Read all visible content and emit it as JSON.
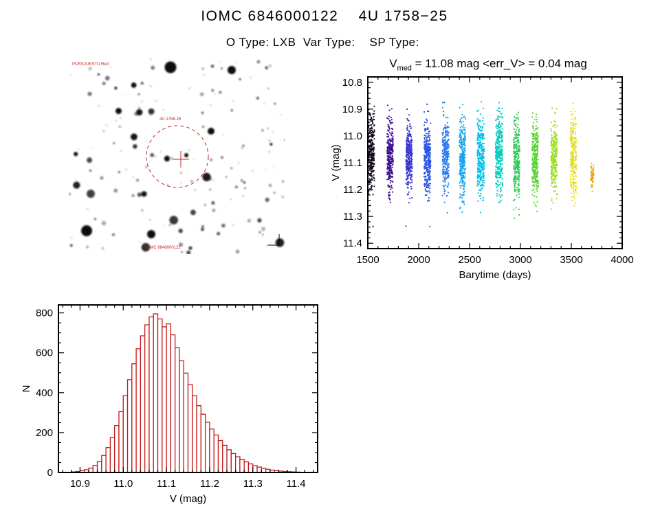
{
  "page": {
    "title": "IOMC 6846000122    4U 1758−25",
    "subtitle": "O Type: LXB  Var Type:    SP Type: "
  },
  "finding_chart": {
    "labels": {
      "top_left": "POSS2UKSTU Red",
      "center": "4U 1758-25",
      "bottom": "IOMC 6846000122"
    },
    "circle_color": "#cc2222",
    "seed": 9,
    "n_small_stars": 150,
    "n_large_stars": 16
  },
  "chart_data": [
    {
      "type": "scatter",
      "name": "lightcurve",
      "title": "Vmed = 11.08 mag <err_V> = 0.04 mag",
      "title_v": "V",
      "title_sub": "med",
      "title_rest": " = 11.08 mag <err_V> = 0.04 mag",
      "v_med_mag": 11.08,
      "err_v_mag": 0.04,
      "xlabel": "Barytime (days)",
      "ylabel": "V (mag)",
      "xlim": [
        1500,
        4000
      ],
      "ylim_top": 10.78,
      "ylim_bottom": 11.42,
      "y_inverted": true,
      "xticks": [
        1500,
        2000,
        2500,
        3000,
        3500,
        4000
      ],
      "yticks": [
        10.8,
        10.9,
        11.0,
        11.1,
        11.2,
        11.3,
        11.4
      ],
      "x_minor_step": 100,
      "y_minor_step": 0.02,
      "clusters": [
        {
          "x": 1535,
          "x_spread": 30,
          "n": 260,
          "v_mean": 11.055,
          "v_sigma": 0.075,
          "color": "#150823"
        },
        {
          "x": 1720,
          "x_spread": 30,
          "n": 280,
          "v_mean": 11.07,
          "v_sigma": 0.07,
          "color": "#3c0d8d"
        },
        {
          "x": 1905,
          "x_spread": 30,
          "n": 280,
          "v_mean": 11.08,
          "v_sigma": 0.068,
          "color": "#3434cf"
        },
        {
          "x": 2085,
          "x_spread": 32,
          "n": 300,
          "v_mean": 11.08,
          "v_sigma": 0.072,
          "color": "#2a55e2"
        },
        {
          "x": 2265,
          "x_spread": 32,
          "n": 300,
          "v_mean": 11.07,
          "v_sigma": 0.07,
          "color": "#2d7ef0"
        },
        {
          "x": 2430,
          "x_spread": 30,
          "n": 280,
          "v_mean": 11.08,
          "v_sigma": 0.073,
          "color": "#13a5ee"
        },
        {
          "x": 2610,
          "x_spread": 34,
          "n": 320,
          "v_mean": 11.08,
          "v_sigma": 0.07,
          "color": "#00c1e8"
        },
        {
          "x": 2790,
          "x_spread": 34,
          "n": 320,
          "v_mean": 11.07,
          "v_sigma": 0.074,
          "color": "#00cdbd"
        },
        {
          "x": 2962,
          "x_spread": 30,
          "n": 280,
          "v_mean": 11.09,
          "v_sigma": 0.078,
          "color": "#2fc958"
        },
        {
          "x": 3145,
          "x_spread": 30,
          "n": 280,
          "v_mean": 11.08,
          "v_sigma": 0.07,
          "color": "#55d231"
        },
        {
          "x": 3330,
          "x_spread": 30,
          "n": 270,
          "v_mean": 11.08,
          "v_sigma": 0.07,
          "color": "#a0dd25"
        },
        {
          "x": 3520,
          "x_spread": 30,
          "n": 260,
          "v_mean": 11.07,
          "v_sigma": 0.078,
          "color": "#e4de1e"
        },
        {
          "x": 3705,
          "x_spread": 15,
          "n": 55,
          "v_mean": 11.15,
          "v_sigma": 0.022,
          "color": "#f0a015"
        }
      ]
    },
    {
      "type": "bar",
      "name": "v-histogram",
      "xlabel": "V (mag)",
      "ylabel": "N",
      "xlim": [
        10.85,
        11.45
      ],
      "ylim": [
        0,
        840
      ],
      "xticks": [
        10.9,
        11.0,
        11.1,
        11.2,
        11.3,
        11.4
      ],
      "yticks": [
        0,
        200,
        400,
        600,
        800
      ],
      "x_minor_step": 0.02,
      "y_minor_step": 50,
      "bar_color": "#c41a1a",
      "bin_start": 10.88,
      "bin_width": 0.01,
      "values": [
        3,
        5,
        9,
        14,
        22,
        35,
        55,
        85,
        125,
        175,
        235,
        305,
        385,
        465,
        545,
        620,
        685,
        740,
        780,
        795,
        770,
        730,
        745,
        690,
        625,
        560,
        498,
        440,
        385,
        335,
        292,
        252,
        218,
        188,
        160,
        136,
        114,
        95,
        79,
        65,
        53,
        43,
        34,
        27,
        21,
        16,
        12,
        9,
        7,
        5,
        4,
        3,
        2
      ]
    }
  ]
}
